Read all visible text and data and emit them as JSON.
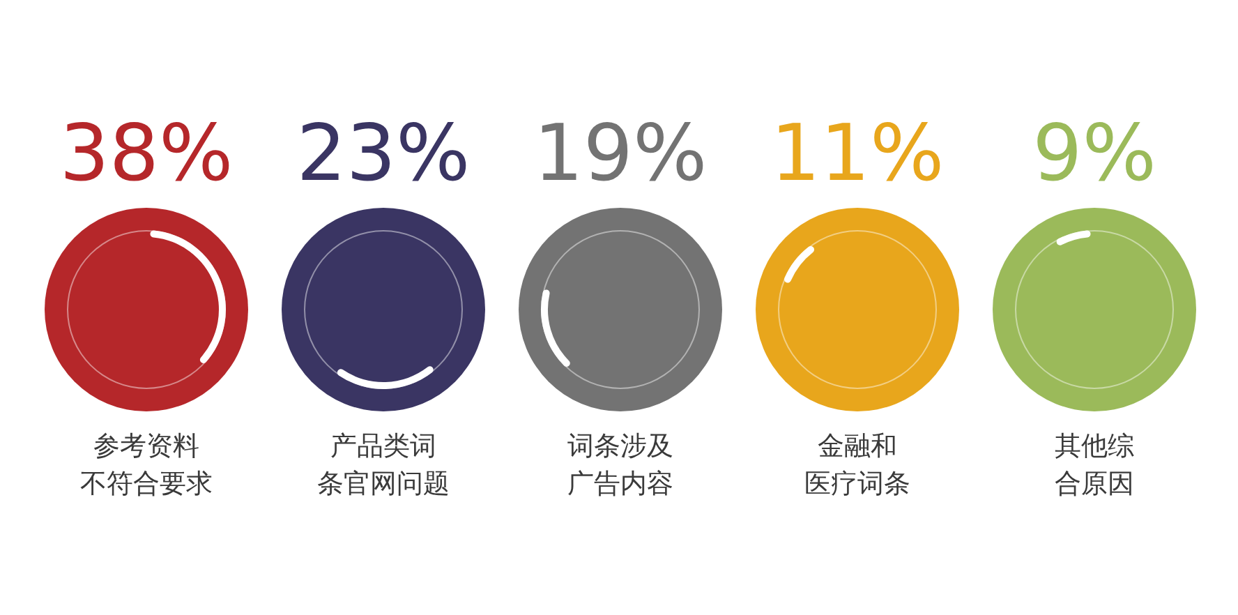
{
  "chart_data": {
    "type": "other",
    "categories": [
      "参考资料不符合要求",
      "产品类词条官网问题",
      "词条涉及广告内容",
      "金融和医疗词条",
      "其他综合原因"
    ],
    "values": [
      38,
      23,
      19,
      11,
      9
    ],
    "value_labels": [
      "38%",
      "23%",
      "19%",
      "11%",
      "9%"
    ],
    "colors": [
      "#b5272a",
      "#3a3563",
      "#737373",
      "#e8a61c",
      "#9bba5a"
    ]
  }
}
